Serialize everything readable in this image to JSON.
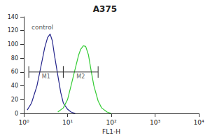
{
  "chart_data": {
    "type": "line",
    "title": "A375",
    "x_label": "FL1-H",
    "log": "x",
    "grid": false,
    "series": [
      {
        "color": "#23238a",
        "x": [
          1.2,
          1.5,
          2,
          2.5,
          3,
          3.5,
          4,
          4.5,
          5,
          6,
          7,
          8,
          10,
          12,
          15
        ],
        "values": [
          5,
          15,
          40,
          70,
          95,
          110,
          115,
          105,
          85,
          55,
          30,
          15,
          6,
          2,
          0
        ]
      },
      {
        "color": "#33cc33",
        "x": [
          6,
          8,
          10,
          12,
          15,
          18,
          20,
          23,
          26,
          30,
          35,
          40,
          50,
          60,
          80,
          100
        ],
        "values": [
          2,
          8,
          20,
          40,
          65,
          85,
          93,
          98,
          97,
          85,
          60,
          40,
          18,
          8,
          2,
          0
        ]
      }
    ],
    "annotations": [
      {
        "text": "control",
        "x": 1.5,
        "y": 125
      }
    ],
    "gates": [
      {
        "label": "M1",
        "x": [
          1.3,
          8
        ],
        "y": 60
      },
      {
        "label": "M2",
        "x": [
          8,
          50
        ],
        "y": 60
      }
    ],
    "xlim": [
      1,
      10000
    ],
    "xticks": [
      {
        "value": 1,
        "label": "10⁰"
      },
      {
        "value": 10,
        "label": "10¹"
      },
      {
        "value": 100,
        "label": "10²"
      },
      {
        "value": 1000,
        "label": "10³"
      },
      {
        "value": 10000,
        "label": "10⁴"
      }
    ],
    "ylim": [
      0,
      140
    ],
    "yticks": [
      0,
      20,
      40,
      60,
      80,
      100,
      120,
      140
    ]
  }
}
